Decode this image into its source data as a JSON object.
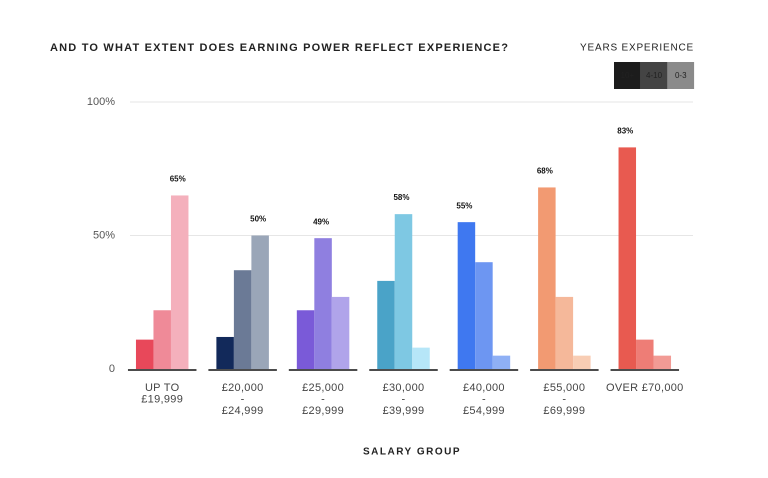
{
  "chart_data": {
    "type": "bar",
    "title": "AND TO WHAT EXTENT DOES EARNING POWER REFLECT EXPERIENCE?",
    "legend_title": "YEARS EXPERIENCE",
    "x_label": "SALARY GROUP",
    "categories": [
      [
        "UP TO",
        "£19,999"
      ],
      [
        "£20,000",
        "-",
        "£24,999"
      ],
      [
        "£25,000",
        "-",
        "£29,999"
      ],
      [
        "£30,000",
        "-",
        "£39,999"
      ],
      [
        "£40,000",
        "-",
        "£54,999"
      ],
      [
        "£55,000",
        "-",
        "£69,999"
      ],
      [
        "OVER £70,000"
      ]
    ],
    "series": [
      {
        "name": "10+",
        "color": "#1c1c1c",
        "colors": [
          "#e8485a",
          "#12295a",
          "#7a5ad8",
          "#4aa3c8",
          "#3f78f0",
          "#f29a72",
          "#e85a50"
        ],
        "values": [
          11,
          12,
          22,
          33,
          55,
          68,
          83
        ],
        "value_labels": [
          null,
          null,
          null,
          null,
          "55%",
          "68%",
          "83%"
        ]
      },
      {
        "name": "4-10",
        "color": "#444444",
        "colors": [
          "#ef8a98",
          "#6b7a96",
          "#8f7fe0",
          "#7ec8e3",
          "#6d96f2",
          "#f5b89a",
          "#ee7d76"
        ],
        "values": [
          22,
          37,
          49,
          58,
          40,
          27,
          11
        ],
        "value_labels": [
          null,
          null,
          "49%",
          "58%",
          null,
          null,
          null
        ]
      },
      {
        "name": "0-3",
        "color": "#8a8a8a",
        "colors": [
          "#f4b0bc",
          "#9aa6b8",
          "#b0a4ea",
          "#b6e6f8",
          "#8fb0f5",
          "#f8cdb4",
          "#f29b95"
        ],
        "values": [
          65,
          50,
          27,
          8,
          5,
          5,
          5
        ],
        "value_labels": [
          "65%",
          "50%",
          null,
          null,
          null,
          null,
          null
        ]
      }
    ],
    "ylim": [
      0,
      100
    ],
    "yticks": [
      0,
      {
        "value": 50,
        "label": "50%"
      },
      {
        "value": 100,
        "label": "100%"
      }
    ],
    "grid": true
  }
}
